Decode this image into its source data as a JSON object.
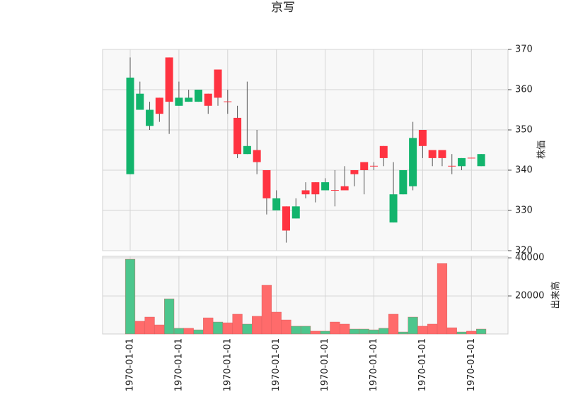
{
  "chart_data": {
    "type": "candlestick",
    "title": "京写",
    "categories": [
      "1970-01-01",
      null,
      null,
      null,
      null,
      "1970-01-01",
      null,
      null,
      null,
      null,
      "1970-01-01",
      null,
      null,
      null,
      null,
      "1970-01-01",
      null,
      null,
      null,
      null,
      "1970-01-01",
      null,
      null,
      null,
      null,
      "1970-01-01",
      null,
      null,
      null,
      null,
      "1970-01-01",
      null,
      null,
      null,
      null,
      "1970-01-01",
      null
    ],
    "open": [
      363,
      359,
      355,
      354,
      357,
      358,
      358,
      360,
      356,
      358,
      357,
      344,
      346,
      342,
      333,
      333,
      325,
      331,
      334,
      334,
      337,
      335,
      335,
      339,
      340,
      341,
      343,
      334,
      340,
      348,
      346,
      343,
      343,
      341,
      343,
      343,
      344
    ],
    "high": [
      368,
      362,
      357,
      358,
      368,
      362,
      360,
      360,
      359,
      365,
      360,
      356,
      362,
      350,
      340,
      335,
      331,
      333,
      337,
      337,
      338,
      340,
      341,
      340,
      342,
      342,
      346,
      342,
      340,
      352,
      350,
      345,
      345,
      344,
      343,
      343,
      344
    ],
    "low": [
      339,
      355,
      350,
      352,
      349,
      356,
      357,
      357,
      354,
      356,
      354,
      343,
      344,
      339,
      329,
      330,
      322,
      328,
      333,
      332,
      335,
      331,
      335,
      336,
      334,
      340,
      341,
      327,
      334,
      335,
      343,
      341,
      341,
      339,
      340,
      343,
      341
    ],
    "close": [
      339,
      355,
      351,
      358,
      368,
      356,
      357,
      357,
      359,
      365,
      357,
      353,
      344,
      345,
      340,
      330,
      331,
      328,
      335,
      337,
      335,
      335,
      336,
      340,
      342,
      341,
      346,
      327,
      334,
      336,
      350,
      345,
      345,
      341,
      341,
      343,
      341
    ],
    "up_color": "#ff3341",
    "down_color": "#12b46c",
    "ylabel": "株価",
    "ylim": [
      320,
      370
    ],
    "yticks": [
      320,
      330,
      340,
      350,
      360,
      370
    ],
    "grid": true,
    "volume": {
      "ylabel": "出来高",
      "ylim": [
        0,
        40800
      ],
      "yticks": [
        20000,
        40000
      ],
      "values": [
        39300,
        6700,
        8900,
        4800,
        18500,
        3000,
        3000,
        2200,
        8500,
        6300,
        5900,
        10400,
        5200,
        9300,
        25600,
        11500,
        7400,
        4100,
        4100,
        1500,
        1500,
        6300,
        5200,
        2600,
        2600,
        2200,
        3000,
        10400,
        1100,
        8900,
        4100,
        5200,
        37000,
        3300,
        1100,
        1500,
        2600
      ],
      "colors": [
        "#4cc68d",
        "#ff6b6b",
        "#ff6b6b",
        "#ff6b6b",
        "#4cc68d",
        "#4cc68d",
        "#ff6b6b",
        "#4cc68d",
        "#ff6b6b",
        "#4cc68d",
        "#ff6b6b",
        "#ff6b6b",
        "#4cc68d",
        "#ff6b6b",
        "#ff6b6b",
        "#ff6b6b",
        "#ff6b6b",
        "#4cc68d",
        "#4cc68d",
        "#ff6b6b",
        "#4cc68d",
        "#ff6b6b",
        "#ff6b6b",
        "#4cc68d",
        "#4cc68d",
        "#4cc68d",
        "#4cc68d",
        "#ff6b6b",
        "#4cc68d",
        "#4cc68d",
        "#ff6b6b",
        "#ff6b6b",
        "#ff6b6b",
        "#ff6b6b",
        "#4cc68d",
        "#ff6b6b",
        "#4cc68d"
      ]
    }
  }
}
